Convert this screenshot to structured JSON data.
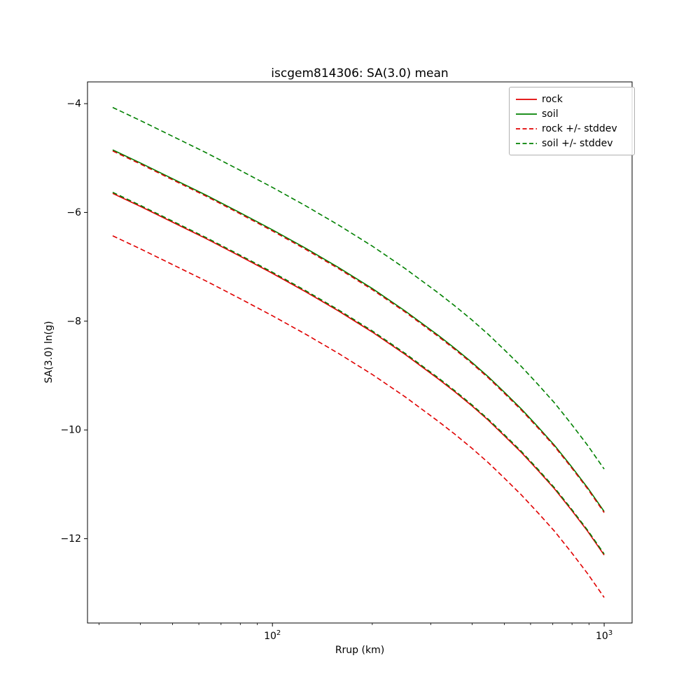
{
  "chart_data": {
    "type": "line",
    "title": "iscgem814306: SA(3.0) mean",
    "xlabel": "Rrup (km)",
    "ylabel": "SA(3.0) ln(g)",
    "xscale": "log",
    "yscale": "linear",
    "xlim": [
      27.7,
      1214
    ],
    "ylim": [
      -13.55,
      -3.6
    ],
    "grid": false,
    "legend_position": "upper right",
    "yticks": [
      {
        "v": -4,
        "label": "−4"
      },
      {
        "v": -6,
        "label": "−6"
      },
      {
        "v": -8,
        "label": "−8"
      },
      {
        "v": -10,
        "label": "−10"
      },
      {
        "v": -12,
        "label": "−12"
      }
    ],
    "xticks": [
      {
        "v": 100,
        "base": "10",
        "exp": "2"
      },
      {
        "v": 1000,
        "base": "10",
        "exp": "3"
      }
    ],
    "x_minor_ticks": [
      30,
      40,
      50,
      60,
      70,
      80,
      90,
      200,
      300,
      400,
      500,
      600,
      700,
      800,
      900
    ],
    "x": [
      33,
      40,
      50,
      63,
      79,
      100,
      126,
      158,
      200,
      251,
      316,
      355,
      398,
      447,
      501,
      562,
      631,
      708,
      794,
      891,
      1000
    ],
    "series": [
      {
        "name": "rock",
        "color": "#e00000",
        "style": "solid",
        "values": [
          -5.65,
          -5.89,
          -6.18,
          -6.48,
          -6.79,
          -7.12,
          -7.46,
          -7.81,
          -8.2,
          -8.61,
          -9.06,
          -9.3,
          -9.55,
          -9.82,
          -10.11,
          -10.41,
          -10.74,
          -11.08,
          -11.46,
          -11.86,
          -12.3
        ]
      },
      {
        "name": "soil",
        "color": "#008000",
        "style": "solid",
        "values": [
          -4.85,
          -5.09,
          -5.38,
          -5.68,
          -5.99,
          -6.32,
          -6.66,
          -7.01,
          -7.4,
          -7.81,
          -8.26,
          -8.5,
          -8.75,
          -9.02,
          -9.31,
          -9.61,
          -9.94,
          -10.28,
          -10.66,
          -11.06,
          -11.5
        ]
      },
      {
        "name": "rock-stddev-upper",
        "color": "#e00000",
        "style": "dashed",
        "values": [
          -4.87,
          -5.11,
          -5.4,
          -5.7,
          -6.01,
          -6.34,
          -6.68,
          -7.03,
          -7.42,
          -7.83,
          -8.28,
          -8.52,
          -8.77,
          -9.04,
          -9.33,
          -9.63,
          -9.96,
          -10.3,
          -10.68,
          -11.08,
          -11.52
        ]
      },
      {
        "name": "rock-stddev-lower",
        "color": "#e00000",
        "style": "dashed",
        "values": [
          -6.43,
          -6.67,
          -6.96,
          -7.26,
          -7.57,
          -7.9,
          -8.24,
          -8.59,
          -8.98,
          -9.39,
          -9.84,
          -10.08,
          -10.33,
          -10.6,
          -10.89,
          -11.19,
          -11.52,
          -11.86,
          -12.24,
          -12.64,
          -13.08
        ]
      },
      {
        "name": "soil-stddev-upper",
        "color": "#008000",
        "style": "dashed",
        "values": [
          -4.07,
          -4.31,
          -4.6,
          -4.9,
          -5.21,
          -5.54,
          -5.88,
          -6.23,
          -6.62,
          -7.03,
          -7.48,
          -7.72,
          -7.97,
          -8.24,
          -8.53,
          -8.83,
          -9.16,
          -9.5,
          -9.88,
          -10.28,
          -10.72
        ]
      },
      {
        "name": "soil-stddev-lower",
        "color": "#008000",
        "style": "dashed",
        "values": [
          -5.63,
          -5.87,
          -6.16,
          -6.46,
          -6.77,
          -7.1,
          -7.44,
          -7.79,
          -8.18,
          -8.59,
          -9.04,
          -9.28,
          -9.53,
          -9.8,
          -10.09,
          -10.39,
          -10.72,
          -11.06,
          -11.44,
          -11.84,
          -12.28
        ]
      }
    ],
    "legend": [
      {
        "label": "rock",
        "color": "#e00000",
        "style": "solid"
      },
      {
        "label": "soil",
        "color": "#008000",
        "style": "solid"
      },
      {
        "label": "rock +/- stddev",
        "color": "#e00000",
        "style": "dashed"
      },
      {
        "label": "soil +/- stddev",
        "color": "#008000",
        "style": "dashed"
      }
    ]
  }
}
